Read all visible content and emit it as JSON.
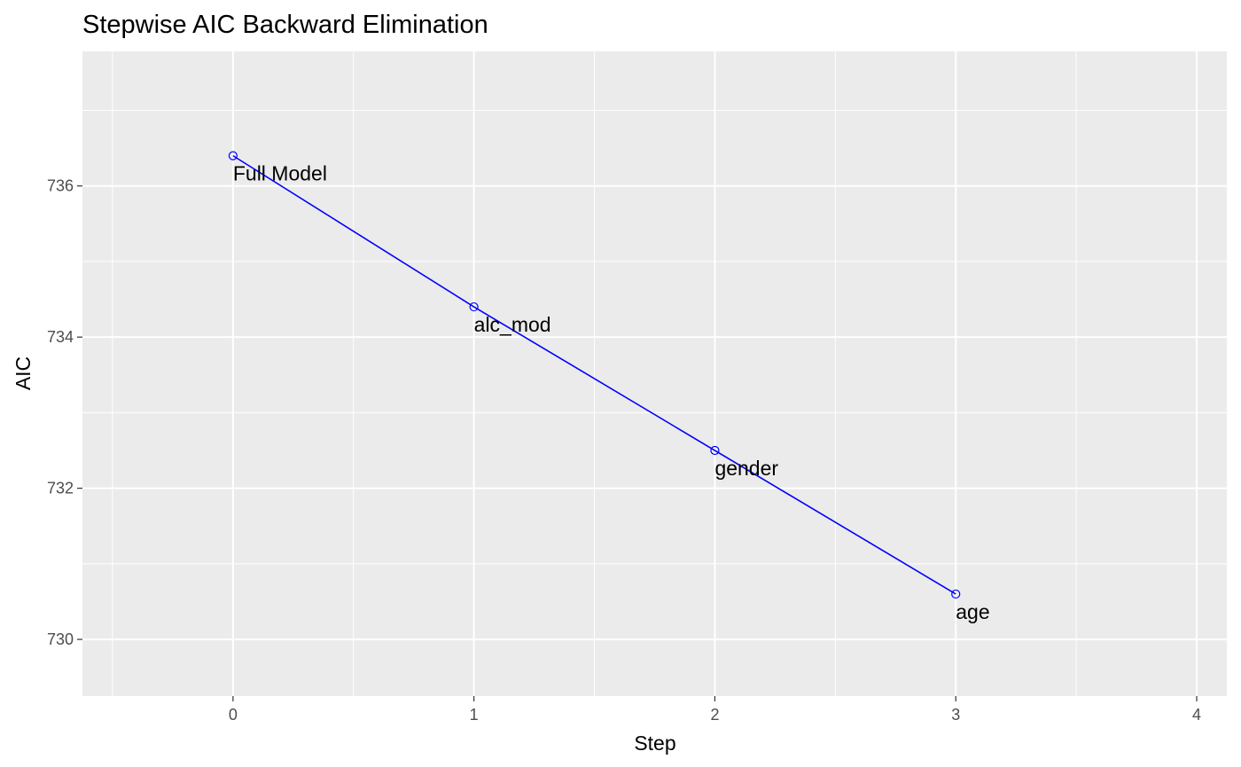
{
  "chart_data": {
    "type": "line",
    "title": "Stepwise AIC Backward Elimination",
    "xlabel": "Step",
    "ylabel": "AIC",
    "x": [
      0,
      1,
      2,
      3
    ],
    "values": [
      736.4,
      734.4,
      732.5,
      730.6
    ],
    "point_labels": [
      "Full Model",
      "alc_mod",
      "gender",
      "age"
    ],
    "xlim": [
      -0.625,
      4.125
    ],
    "ylim": [
      729.25,
      737.78
    ],
    "x_ticks": [
      0,
      1,
      2,
      3,
      4
    ],
    "y_ticks": [
      730,
      732,
      734,
      736
    ],
    "grid": true,
    "line_color": "#0000ff",
    "panel_background": "#ebebeb",
    "grid_color": "#ffffff"
  }
}
